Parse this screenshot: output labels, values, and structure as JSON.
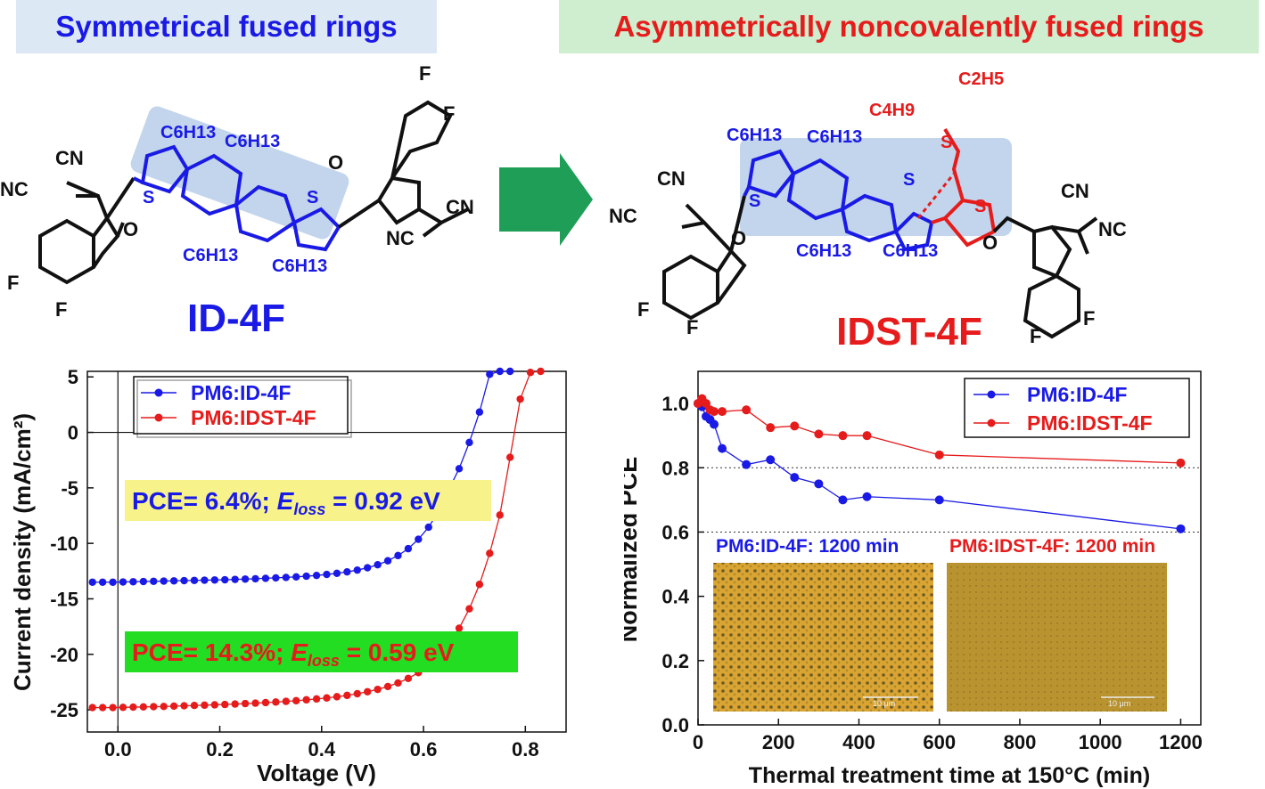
{
  "banners": {
    "left": "Symmetrical fused rings",
    "right": "Asymmetrically noncovalently fused rings"
  },
  "molecules": {
    "left_name": "ID-4F",
    "right_name": "IDST-4F",
    "left_labels": [
      "CN",
      "NC",
      "O",
      "F",
      "F",
      "S",
      "S",
      "O",
      "F",
      "F",
      "CN",
      "NC"
    ],
    "left_alkyl": [
      "C6H13",
      "C6H13",
      "C6H13",
      "C6H13"
    ],
    "right_labels": [
      "CN",
      "NC",
      "O",
      "F",
      "F",
      "S",
      "S",
      "S",
      "S",
      "O",
      "F",
      "F",
      "CN",
      "NC"
    ],
    "right_alkyl": [
      "C6H13",
      "C6H13",
      "C6H13",
      "C6H13",
      "C4H9",
      "C2H5"
    ],
    "colors": {
      "blue": "#1a1ae6",
      "red": "#e61c1c",
      "black": "#111111",
      "highlight": "#8fb3dc"
    }
  },
  "arrow": {
    "color": "#1f9e57"
  },
  "chart_data": [
    {
      "type": "line",
      "xlabel": "Voltage (V)",
      "ylabel": "Current density (mA/cm²)",
      "xlim": [
        -0.06,
        0.88
      ],
      "ylim": [
        -27,
        5.5
      ],
      "xticks": [
        "0.0",
        "0.2",
        "0.4",
        "0.6",
        "0.8"
      ],
      "xtick_values": [
        0.0,
        0.2,
        0.4,
        0.6,
        0.8
      ],
      "yticks": [
        "5",
        "0",
        "-5",
        "-10",
        "-15",
        "-20",
        "-25"
      ],
      "ytick_values": [
        5,
        0,
        -5,
        -10,
        -15,
        -20,
        -25
      ],
      "legend": [
        "PM6:ID-4F",
        "PM6:IDST-4F"
      ],
      "annotations": [
        {
          "pre": "PCE= 6.4%; ",
          "sym": "E",
          "sub": "loss",
          "post": " = 0.92 eV",
          "color": "#1a1ae6",
          "bg": "#f7f38a"
        },
        {
          "pre": "PCE= 14.3%;  ",
          "sym": "E",
          "sub": "loss",
          "post": " = 0.59 eV",
          "color": "#e61c1c",
          "bg": "#22dd22"
        }
      ],
      "series": [
        {
          "name": "PM6:ID-4F",
          "color": "#1a1ae6",
          "x": [
            -0.05,
            -0.03,
            -0.01,
            0.01,
            0.03,
            0.05,
            0.07,
            0.09,
            0.11,
            0.13,
            0.15,
            0.17,
            0.19,
            0.21,
            0.23,
            0.25,
            0.27,
            0.29,
            0.31,
            0.33,
            0.35,
            0.37,
            0.39,
            0.41,
            0.43,
            0.45,
            0.47,
            0.49,
            0.51,
            0.53,
            0.55,
            0.57,
            0.59,
            0.61,
            0.63,
            0.65,
            0.67,
            0.69,
            0.71,
            0.73,
            0.75,
            0.77
          ],
          "y": [
            -13.5,
            -13.5,
            -13.5,
            -13.48,
            -13.46,
            -13.44,
            -13.42,
            -13.4,
            -13.38,
            -13.36,
            -13.34,
            -13.32,
            -13.3,
            -13.28,
            -13.25,
            -13.22,
            -13.19,
            -13.15,
            -13.11,
            -13.07,
            -13.02,
            -12.96,
            -12.89,
            -12.8,
            -12.7,
            -12.57,
            -12.41,
            -12.2,
            -11.93,
            -11.57,
            -11.1,
            -10.48,
            -9.63,
            -8.55,
            -7.07,
            -5.12,
            -3.27,
            -0.91,
            1.83,
            5.24,
            5.5,
            5.5
          ]
        },
        {
          "name": "PM6:IDST-4F",
          "color": "#e61c1c",
          "x": [
            -0.05,
            -0.03,
            -0.01,
            0.01,
            0.03,
            0.05,
            0.07,
            0.09,
            0.11,
            0.13,
            0.15,
            0.17,
            0.19,
            0.21,
            0.23,
            0.25,
            0.27,
            0.29,
            0.31,
            0.33,
            0.35,
            0.37,
            0.39,
            0.41,
            0.43,
            0.45,
            0.47,
            0.49,
            0.51,
            0.53,
            0.55,
            0.57,
            0.59,
            0.61,
            0.63,
            0.65,
            0.67,
            0.69,
            0.71,
            0.73,
            0.75,
            0.77,
            0.79,
            0.81,
            0.83
          ],
          "y": [
            -24.8,
            -24.8,
            -24.8,
            -24.78,
            -24.76,
            -24.74,
            -24.72,
            -24.7,
            -24.67,
            -24.64,
            -24.61,
            -24.58,
            -24.55,
            -24.52,
            -24.48,
            -24.44,
            -24.4,
            -24.35,
            -24.3,
            -24.24,
            -24.18,
            -24.1,
            -24.02,
            -23.93,
            -23.82,
            -23.7,
            -23.55,
            -23.37,
            -23.16,
            -22.9,
            -22.58,
            -22.17,
            -21.65,
            -21.0,
            -20.15,
            -19.05,
            -17.65,
            -15.9,
            -13.7,
            -10.9,
            -7.45,
            -2.25,
            3.0,
            5.4,
            5.5
          ]
        }
      ]
    },
    {
      "type": "line",
      "xlabel": "Thermal treatment time at 150°C (min)",
      "ylabel": "Normalized PCE",
      "xlim": [
        0,
        1250
      ],
      "ylim": [
        0,
        1.1
      ],
      "xticks": [
        "0",
        "200",
        "400",
        "600",
        "800",
        "1000",
        "1200"
      ],
      "xtick_values": [
        0,
        200,
        400,
        600,
        800,
        1000,
        1200
      ],
      "yticks": [
        "0.0",
        "0.2",
        "0.4",
        "0.6",
        "0.8",
        "1.0"
      ],
      "ytick_values": [
        0,
        0.2,
        0.4,
        0.6,
        0.8,
        1.0
      ],
      "ref_lines": [
        0.8,
        0.6
      ],
      "legend": [
        "PM6:ID-4F",
        "PM6:IDST-4F"
      ],
      "inset_labels": [
        "PM6:ID-4F: 1200 min",
        "PM6:IDST-4F: 1200 min"
      ],
      "scale_bar": "10 μm",
      "series": [
        {
          "name": "PM6:ID-4F",
          "color": "#1a1ae6",
          "x": [
            0,
            10,
            20,
            30,
            40,
            60,
            120,
            180,
            240,
            300,
            360,
            420,
            600,
            1200
          ],
          "y": [
            1.0,
            0.99,
            0.96,
            0.95,
            0.935,
            0.86,
            0.81,
            0.825,
            0.77,
            0.75,
            0.7,
            0.71,
            0.7,
            0.61
          ]
        },
        {
          "name": "PM6:IDST-4F",
          "color": "#e61c1c",
          "x": [
            0,
            10,
            20,
            30,
            40,
            60,
            120,
            180,
            240,
            300,
            360,
            420,
            600,
            1200
          ],
          "y": [
            1.0,
            1.015,
            1.0,
            0.98,
            0.975,
            0.975,
            0.98,
            0.925,
            0.93,
            0.905,
            0.9,
            0.9,
            0.84,
            0.815
          ]
        }
      ]
    }
  ]
}
